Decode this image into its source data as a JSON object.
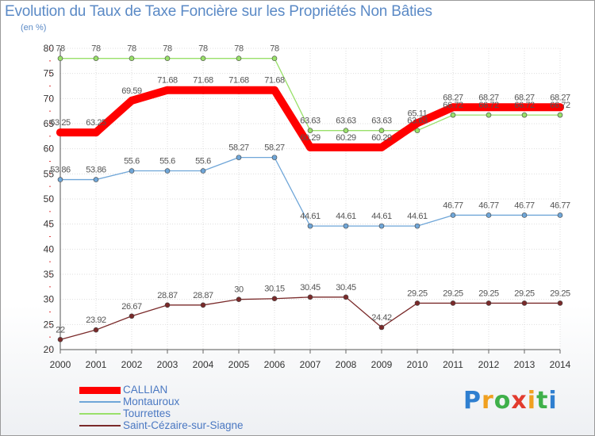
{
  "chart_data": {
    "type": "line",
    "title": "Evolution du Taux de Taxe Foncière sur les Propriétés Non Bâties",
    "subtitle": "(en %)",
    "x": [
      "2000",
      "2001",
      "2002",
      "2003",
      "2004",
      "2005",
      "2006",
      "2007",
      "2008",
      "2009",
      "2010",
      "2011",
      "2012",
      "2013",
      "2014"
    ],
    "ylim": [
      20,
      80
    ],
    "yticks": [
      20,
      25,
      30,
      35,
      40,
      45,
      50,
      55,
      60,
      65,
      70,
      75,
      80
    ],
    "grid": true,
    "legend_position": "bottom-left",
    "series": [
      {
        "name": "CALLIAN",
        "color": "#ff0000",
        "values": [
          63.25,
          63.25,
          69.59,
          71.68,
          71.68,
          71.68,
          71.68,
          60.29,
          60.29,
          60.29,
          65.11,
          68.27,
          68.27,
          68.27,
          68.27
        ],
        "labels": [
          "63.25",
          "63.25",
          "69.59",
          "71.68",
          "71.68",
          "71.68",
          "71.68",
          "60.29",
          "60.29",
          "60.29",
          "65.11",
          "68.27",
          "68.27",
          "68.27",
          "68.27"
        ]
      },
      {
        "name": "Montauroux",
        "color": "#6fa6d8",
        "values": [
          53.86,
          53.86,
          55.6,
          55.6,
          55.6,
          58.27,
          58.27,
          44.61,
          44.61,
          44.61,
          44.61,
          46.77,
          46.77,
          46.77,
          46.77
        ],
        "labels": [
          "53.86",
          "53.86",
          "55.6",
          "55.6",
          "55.6",
          "58.27",
          "58.27",
          "44.61",
          "44.61",
          "44.61",
          "44.61",
          "46.77",
          "46.77",
          "46.77",
          "46.77"
        ]
      },
      {
        "name": "Tourrettes",
        "color": "#99e06a",
        "values": [
          78,
          78,
          78,
          78,
          78,
          78,
          78,
          63.63,
          63.63,
          63.63,
          63.63,
          66.72,
          66.72,
          66.72,
          66.72
        ],
        "labels": [
          "78",
          "78",
          "78",
          "78",
          "78",
          "78",
          "78",
          "63.63",
          "63.63",
          "63.63",
          "63.63",
          "66.72",
          "66.72",
          "66.72",
          "66.72"
        ]
      },
      {
        "name": "Saint-Cézaire-sur-Siagne",
        "color": "#7a2a2a",
        "values": [
          22,
          23.92,
          26.67,
          28.87,
          28.87,
          30,
          30.15,
          30.45,
          30.45,
          24.42,
          29.25,
          29.25,
          29.25,
          29.25,
          29.25
        ],
        "labels": [
          "22",
          "23.92",
          "26.67",
          "28.87",
          "28.87",
          "30",
          "30.15",
          "30.45",
          "30.45",
          "24.42",
          "29.25",
          "29.25",
          "29.25",
          "29.25",
          "29.25"
        ]
      }
    ]
  },
  "logo": {
    "letters": [
      "P",
      "r",
      "o",
      "x",
      "i",
      "t",
      "i"
    ],
    "colors": [
      "#2f7fd0",
      "#f0a020",
      "#3fb04a",
      "#e23b2e",
      "#f0a020",
      "#3fb04a",
      "#2f7fd0"
    ]
  }
}
